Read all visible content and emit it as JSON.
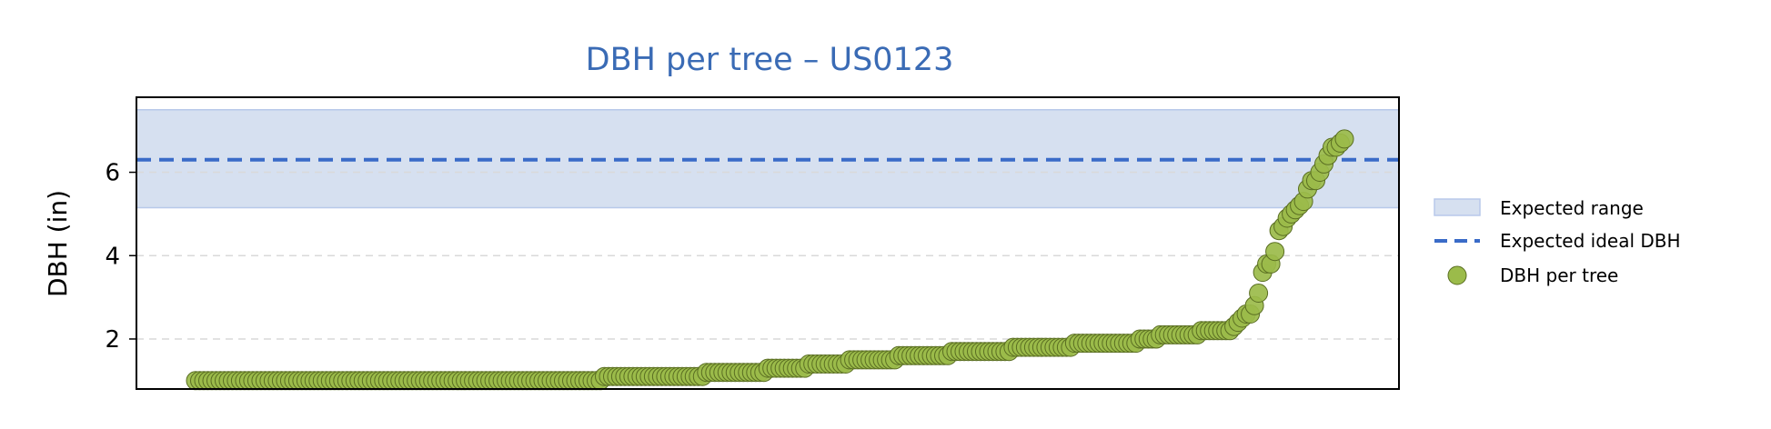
{
  "chart_data": {
    "type": "scatter",
    "title": "DBH per tree – US0123",
    "ylabel": "DBH (in)",
    "xlabel": "",
    "ylim": [
      0.8,
      7.8
    ],
    "yticks": [
      2,
      4,
      6
    ],
    "grid_y": true,
    "legend_position": "right",
    "expected_range": {
      "name": "Expected range",
      "low": 5.15,
      "high": 7.5
    },
    "expected_ideal": {
      "name": "Expected ideal DBH",
      "value": 6.3
    },
    "series": [
      {
        "name": "DBH per tree",
        "values": [
          1.0,
          1.0,
          1.0,
          1.0,
          1.0,
          1.0,
          1.0,
          1.0,
          1.0,
          1.0,
          1.0,
          1.0,
          1.0,
          1.0,
          1.0,
          1.0,
          1.0,
          1.0,
          1.0,
          1.0,
          1.0,
          1.0,
          1.0,
          1.0,
          1.0,
          1.0,
          1.0,
          1.0,
          1.0,
          1.0,
          1.0,
          1.0,
          1.0,
          1.0,
          1.0,
          1.0,
          1.0,
          1.0,
          1.0,
          1.0,
          1.0,
          1.0,
          1.0,
          1.0,
          1.0,
          1.0,
          1.0,
          1.0,
          1.0,
          1.0,
          1.0,
          1.0,
          1.0,
          1.0,
          1.0,
          1.0,
          1.0,
          1.0,
          1.0,
          1.0,
          1.0,
          1.0,
          1.0,
          1.0,
          1.0,
          1.0,
          1.0,
          1.0,
          1.0,
          1.0,
          1.0,
          1.0,
          1.0,
          1.0,
          1.0,
          1.0,
          1.0,
          1.0,
          1.0,
          1.0,
          1.0,
          1.0,
          1.0,
          1.0,
          1.0,
          1.0,
          1.0,
          1.0,
          1.0,
          1.0,
          1.0,
          1.0,
          1.0,
          1.0,
          1.0,
          1.0,
          1.0,
          1.0,
          1.0,
          1.0,
          1.1,
          1.1,
          1.1,
          1.1,
          1.1,
          1.1,
          1.1,
          1.1,
          1.1,
          1.1,
          1.1,
          1.1,
          1.1,
          1.1,
          1.1,
          1.1,
          1.1,
          1.1,
          1.1,
          1.1,
          1.1,
          1.1,
          1.1,
          1.1,
          1.1,
          1.2,
          1.2,
          1.2,
          1.2,
          1.2,
          1.2,
          1.2,
          1.2,
          1.2,
          1.2,
          1.2,
          1.2,
          1.2,
          1.2,
          1.2,
          1.3,
          1.3,
          1.3,
          1.3,
          1.3,
          1.3,
          1.3,
          1.3,
          1.3,
          1.3,
          1.4,
          1.4,
          1.4,
          1.4,
          1.4,
          1.4,
          1.4,
          1.4,
          1.4,
          1.4,
          1.5,
          1.5,
          1.5,
          1.5,
          1.5,
          1.5,
          1.5,
          1.5,
          1.5,
          1.5,
          1.5,
          1.5,
          1.6,
          1.6,
          1.6,
          1.6,
          1.6,
          1.6,
          1.6,
          1.6,
          1.6,
          1.6,
          1.6,
          1.6,
          1.6,
          1.7,
          1.7,
          1.7,
          1.7,
          1.7,
          1.7,
          1.7,
          1.7,
          1.7,
          1.7,
          1.7,
          1.7,
          1.7,
          1.7,
          1.7,
          1.8,
          1.8,
          1.8,
          1.8,
          1.8,
          1.8,
          1.8,
          1.8,
          1.8,
          1.8,
          1.8,
          1.8,
          1.8,
          1.8,
          1.8,
          1.9,
          1.9,
          1.9,
          1.9,
          1.9,
          1.9,
          1.9,
          1.9,
          1.9,
          1.9,
          1.9,
          1.9,
          1.9,
          1.9,
          1.9,
          1.9,
          2.0,
          2.0,
          2.0,
          2.0,
          2.0,
          2.1,
          2.1,
          2.1,
          2.1,
          2.1,
          2.1,
          2.1,
          2.1,
          2.1,
          2.1,
          2.2,
          2.2,
          2.2,
          2.2,
          2.2,
          2.2,
          2.2,
          2.2,
          2.3,
          2.4,
          2.5,
          2.6,
          2.6,
          2.8,
          3.1,
          3.6,
          3.8,
          3.8,
          4.1,
          4.6,
          4.7,
          4.9,
          5.0,
          5.1,
          5.2,
          5.3,
          5.6,
          5.8,
          5.8,
          6.0,
          6.2,
          6.4,
          6.6,
          6.6,
          6.7,
          6.8
        ]
      }
    ],
    "colors": {
      "title": "#3a6bb5",
      "band_fill": "#d6e0f0",
      "band_edge": "#b8c9ea",
      "ideal_line": "#3a6bc8",
      "point_fill": "#9bbb4a",
      "point_edge": "#5a6e22",
      "grid": "#d9d9d9",
      "axis": "#000000"
    }
  }
}
